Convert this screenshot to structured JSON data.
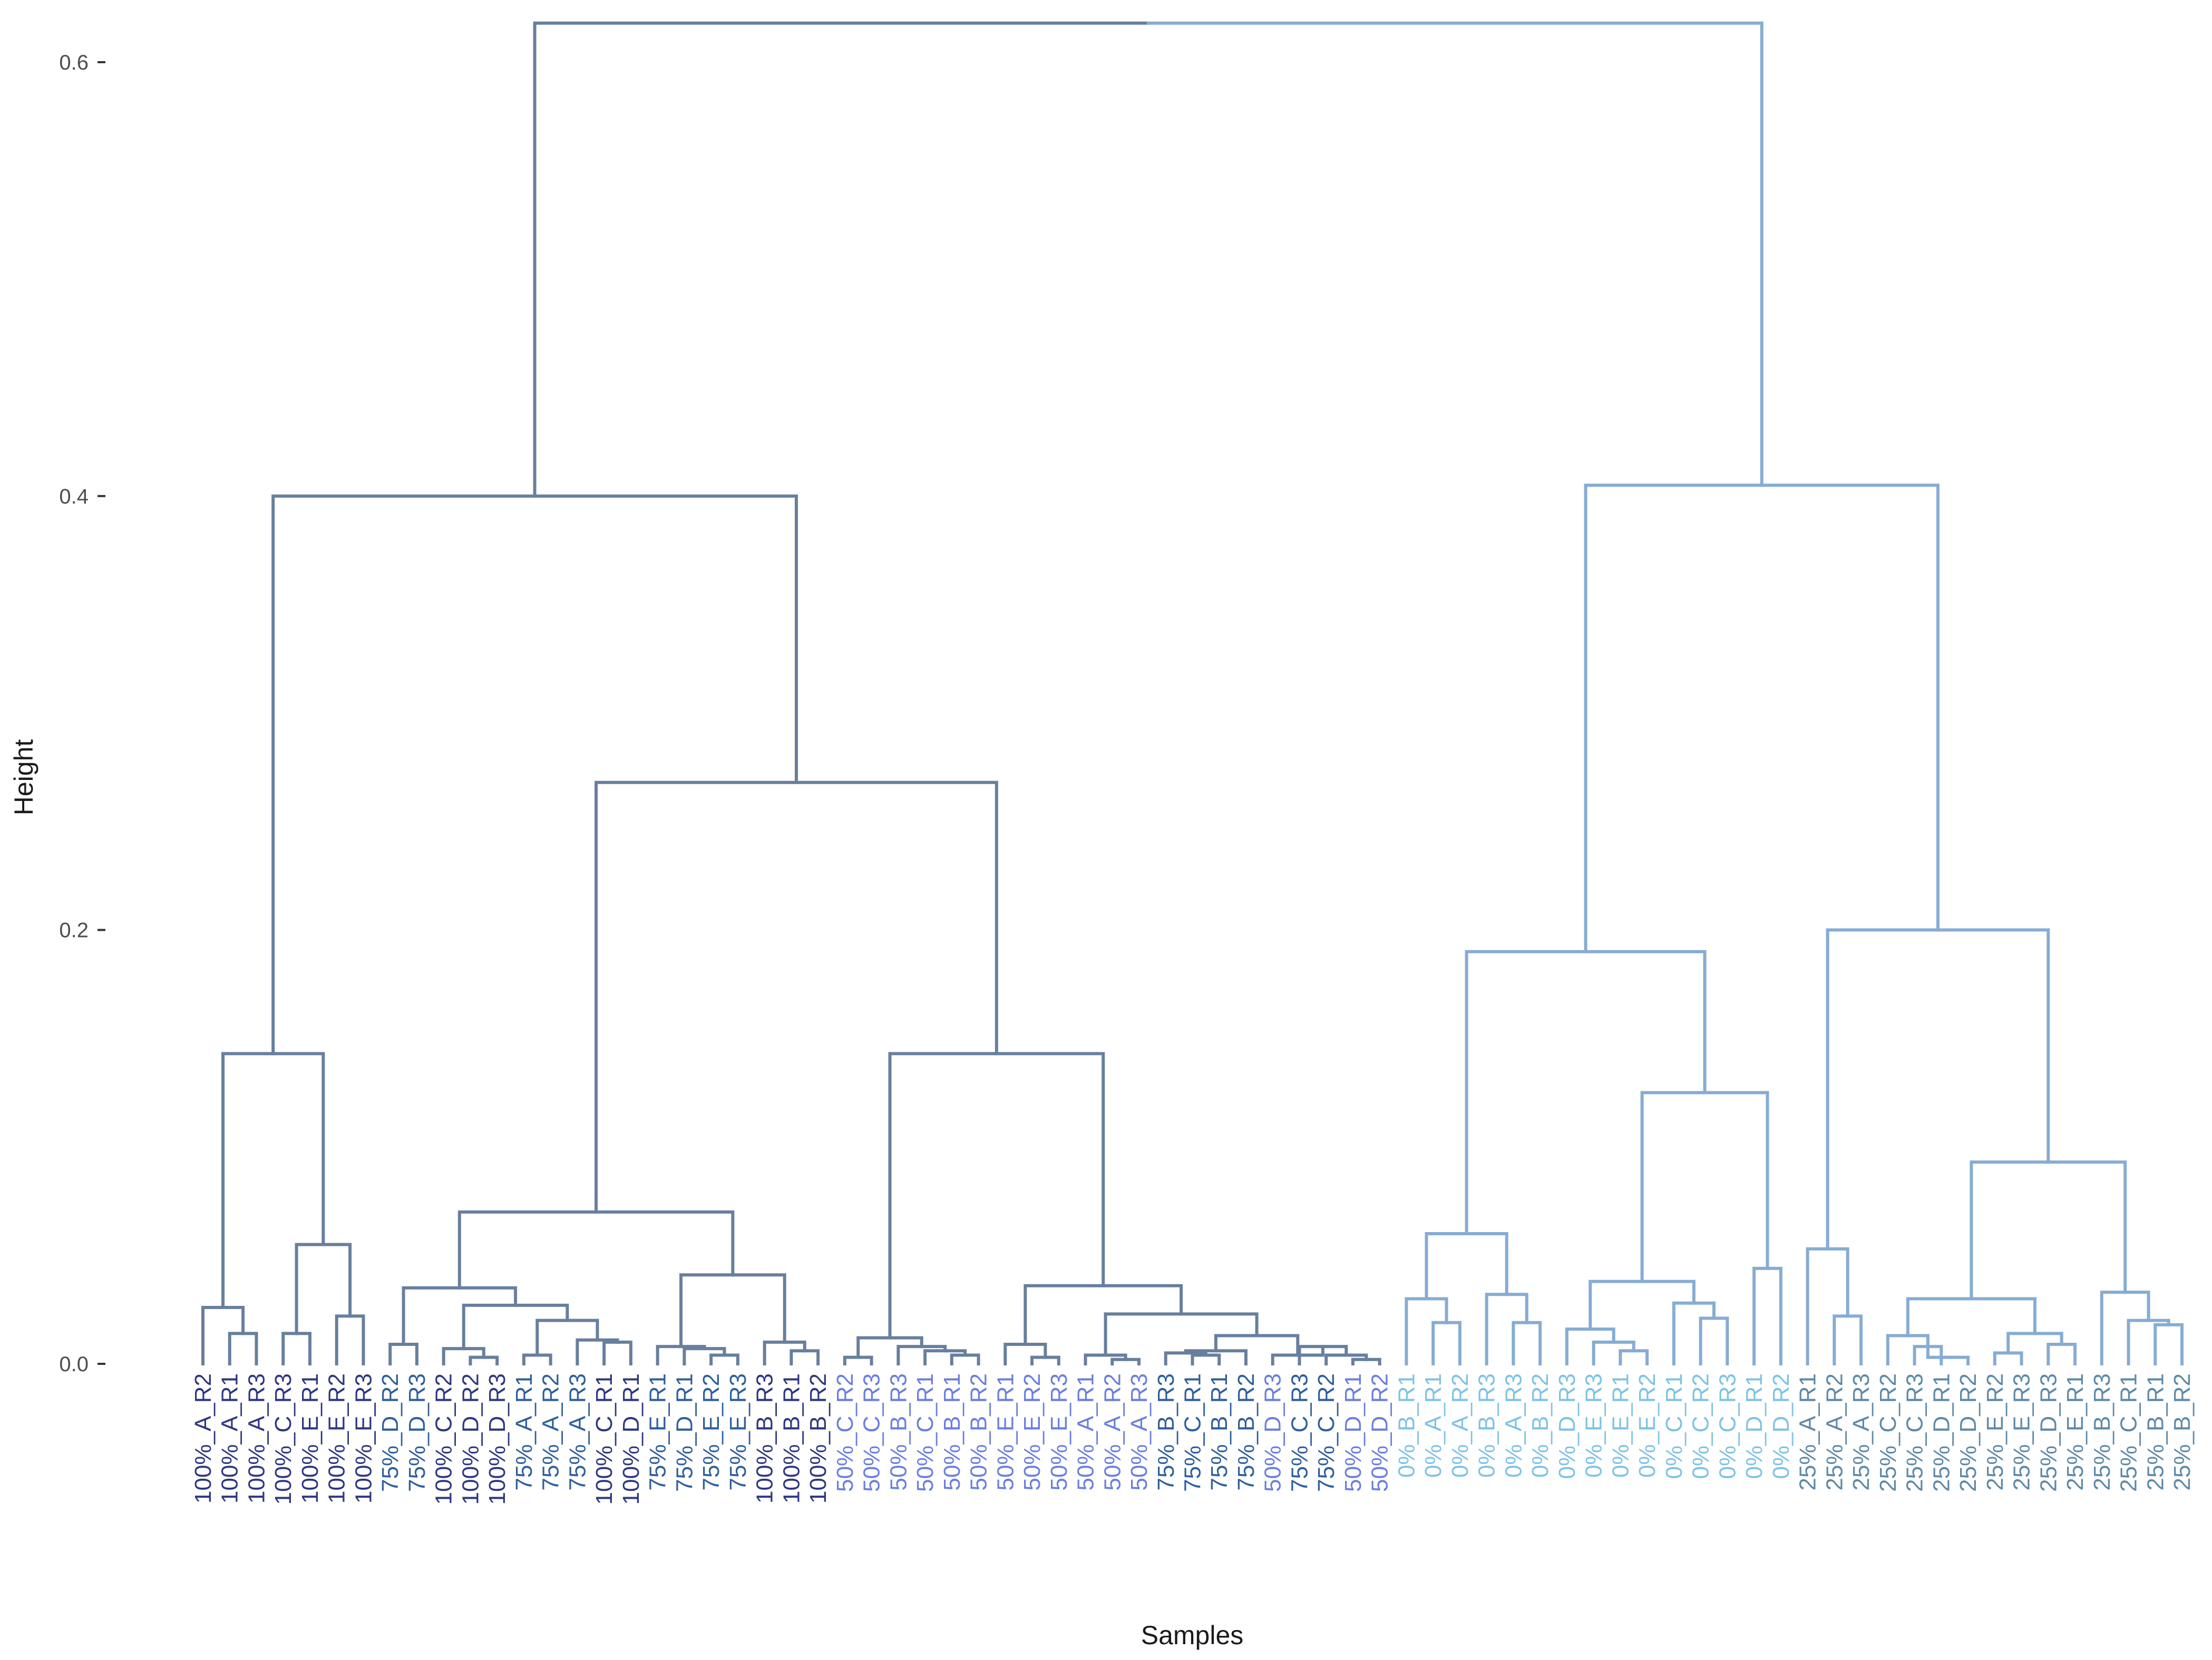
{
  "chart_data": {
    "type": "dendrogram",
    "title": "",
    "xlabel": "Samples",
    "ylabel": "Height",
    "ylim": [
      0,
      0.62
    ],
    "yticks": [
      0.0,
      0.2,
      0.4,
      0.6
    ],
    "ytick_labels": [
      "0.0",
      "0.2",
      "0.4",
      "0.6"
    ],
    "grid": false,
    "colors": {
      "left_branch": "#687f9e",
      "right_branch": "#86acd4",
      "labels_100": "#2e3780",
      "labels_75": "#2f5f9c",
      "labels_50": "#6a7ee0",
      "labels_0": "#7ec3e3",
      "labels_25": "#5e89a8"
    },
    "leaves": [
      "100%_A_R2",
      "100%_A_R1",
      "100%_A_R3",
      "100%_C_R3",
      "100%_E_R1",
      "100%_E_R2",
      "100%_E_R3",
      "75%_D_R2",
      "75%_D_R3",
      "100%_C_R2",
      "100%_D_R2",
      "100%_D_R3",
      "75%_A_R1",
      "75%_A_R2",
      "75%_A_R3",
      "100%_C_R1",
      "100%_D_R1",
      "75%_E_R1",
      "75%_D_R1",
      "75%_E_R2",
      "75%_E_R3",
      "100%_B_R3",
      "100%_B_R1",
      "100%_B_R2",
      "50%_C_R2",
      "50%_C_R3",
      "50%_B_R3",
      "50%_C_R1",
      "50%_B_R1",
      "50%_B_R2",
      "50%_E_R1",
      "50%_E_R2",
      "50%_E_R3",
      "50%_A_R1",
      "50%_A_R2",
      "50%_A_R3",
      "75%_B_R3",
      "75%_C_R1",
      "75%_B_R1",
      "75%_B_R2",
      "50%_D_R3",
      "75%_C_R3",
      "75%_C_R2",
      "50%_D_R1",
      "50%_D_R2",
      "0%_B_R1",
      "0%_A_R1",
      "0%_A_R2",
      "0%_B_R3",
      "0%_A_R3",
      "0%_B_R2",
      "0%_D_R3",
      "0%_E_R3",
      "0%_E_R1",
      "0%_E_R2",
      "0%_C_R1",
      "0%_C_R2",
      "0%_C_R3",
      "0%_D_R1",
      "0%_D_R2",
      "25%_A_R1",
      "25%_A_R2",
      "25%_A_R3",
      "25%_C_R2",
      "25%_C_R3",
      "25%_D_R1",
      "25%_D_R2",
      "25%_E_R2",
      "25%_E_R3",
      "25%_D_R3",
      "25%_E_R1",
      "25%_B_R3",
      "25%_C_R1",
      "25%_B_R1",
      "25%_B_R2"
    ],
    "merges": [
      {
        "id": "a1",
        "l": 1,
        "r": 2,
        "h": 0.014
      },
      {
        "id": "a2",
        "l": 0,
        "r": "a1",
        "h": 0.026
      },
      {
        "id": "a3",
        "l": 3,
        "r": 4,
        "h": 0.014
      },
      {
        "id": "a4",
        "l": 5,
        "r": 6,
        "h": 0.022
      },
      {
        "id": "a5",
        "l": "a3",
        "r": "a4",
        "h": 0.055
      },
      {
        "id": "a6",
        "l": "a2",
        "r": "a5",
        "h": 0.143
      },
      {
        "id": "b1",
        "l": 7,
        "r": 8,
        "h": 0.009
      },
      {
        "id": "b2",
        "l": 10,
        "r": 11,
        "h": 0.003
      },
      {
        "id": "b3",
        "l": 9,
        "r": "b2",
        "h": 0.007
      },
      {
        "id": "b4",
        "l": 12,
        "r": 13,
        "h": 0.004
      },
      {
        "id": "b5",
        "l": 15,
        "r": 16,
        "h": 0.01
      },
      {
        "id": "b6",
        "l": 14,
        "r": "b5",
        "h": 0.011
      },
      {
        "id": "b7",
        "l": "b4",
        "r": "b6",
        "h": 0.02
      },
      {
        "id": "b8",
        "l": "b3",
        "r": "b7",
        "h": 0.027
      },
      {
        "id": "b9",
        "l": "b1",
        "r": "b8",
        "h": 0.035
      },
      {
        "id": "b10",
        "l": 19,
        "r": 20,
        "h": 0.004
      },
      {
        "id": "b11",
        "l": 18,
        "r": "b10",
        "h": 0.007
      },
      {
        "id": "b12",
        "l": 17,
        "r": "b11",
        "h": 0.008
      },
      {
        "id": "b13",
        "l": 22,
        "r": 23,
        "h": 0.006
      },
      {
        "id": "b14",
        "l": 21,
        "r": "b13",
        "h": 0.01
      },
      {
        "id": "b15",
        "l": "b12",
        "r": "b14",
        "h": 0.041
      },
      {
        "id": "b16",
        "l": "b9",
        "r": "b15",
        "h": 0.07
      },
      {
        "id": "c1",
        "l": 24,
        "r": 25,
        "h": 0.003
      },
      {
        "id": "c2",
        "l": 28,
        "r": 29,
        "h": 0.004
      },
      {
        "id": "c3",
        "l": 27,
        "r": "c2",
        "h": 0.006
      },
      {
        "id": "c4",
        "l": 26,
        "r": "c3",
        "h": 0.008
      },
      {
        "id": "c5",
        "l": "c1",
        "r": "c4",
        "h": 0.012
      },
      {
        "id": "c6",
        "l": 31,
        "r": 32,
        "h": 0.003
      },
      {
        "id": "c7",
        "l": 30,
        "r": "c6",
        "h": 0.009
      },
      {
        "id": "c8",
        "l": 34,
        "r": 35,
        "h": 0.002
      },
      {
        "id": "c9",
        "l": 33,
        "r": "c8",
        "h": 0.004
      },
      {
        "id": "c10",
        "l": 37,
        "r": 38,
        "h": 0.004
      },
      {
        "id": "c11",
        "l": 36,
        "r": "c10",
        "h": 0.005
      },
      {
        "id": "c12",
        "l": "c11",
        "r": 39,
        "h": 0.006
      },
      {
        "id": "c13",
        "l": 43,
        "r": 44,
        "h": 0.002
      },
      {
        "id": "c14",
        "l": 42,
        "r": "c13",
        "h": 0.004
      },
      {
        "id": "c15",
        "l": 41,
        "r": "c14",
        "h": 0.008
      },
      {
        "id": "c16",
        "l": 40,
        "r": "c15",
        "h": 0.004
      },
      {
        "id": "c17",
        "l": "c12",
        "r": "c16",
        "h": 0.013
      },
      {
        "id": "c18",
        "l": "c9",
        "r": "c17",
        "h": 0.023
      },
      {
        "id": "c19",
        "l": "c7",
        "r": "c18",
        "h": 0.036
      },
      {
        "id": "c20",
        "l": "c5",
        "r": "c19",
        "h": 0.143
      },
      {
        "id": "c21",
        "l": "b16",
        "r": "c20",
        "h": 0.268
      },
      {
        "id": "c22",
        "l": "a6",
        "r": "c21",
        "h": 0.4
      },
      {
        "id": "d1",
        "l": 46,
        "r": 47,
        "h": 0.019
      },
      {
        "id": "d2",
        "l": 45,
        "r": "d1",
        "h": 0.03
      },
      {
        "id": "d3",
        "l": 49,
        "r": 50,
        "h": 0.019
      },
      {
        "id": "d4",
        "l": 48,
        "r": "d3",
        "h": 0.032
      },
      {
        "id": "d5",
        "l": "d2",
        "r": "d4",
        "h": 0.06
      },
      {
        "id": "d6",
        "l": 53,
        "r": 54,
        "h": 0.006
      },
      {
        "id": "d7",
        "l": 52,
        "r": "d6",
        "h": 0.01
      },
      {
        "id": "d8",
        "l": 51,
        "r": "d7",
        "h": 0.016
      },
      {
        "id": "d9",
        "l": 56,
        "r": 57,
        "h": 0.021
      },
      {
        "id": "d10",
        "l": 55,
        "r": "d9",
        "h": 0.028
      },
      {
        "id": "d11",
        "l": "d8",
        "r": "d10",
        "h": 0.038
      },
      {
        "id": "d12",
        "l": 58,
        "r": 59,
        "h": 0.044
      },
      {
        "id": "d13",
        "l": "d11",
        "r": "d12",
        "h": 0.125
      },
      {
        "id": "d14",
        "l": "d5",
        "r": "d13",
        "h": 0.19
      },
      {
        "id": "e1",
        "l": 61,
        "r": 62,
        "h": 0.022
      },
      {
        "id": "e2",
        "l": 60,
        "r": "e1",
        "h": 0.053
      },
      {
        "id": "e3",
        "l": 64,
        "r": 65,
        "h": 0.008
      },
      {
        "id": "e4",
        "l": "e3",
        "r": 66,
        "h": 0.003
      },
      {
        "id": "e5",
        "l": 63,
        "r": "e3",
        "h": 0.013
      },
      {
        "id": "e6",
        "l": 67,
        "r": 68,
        "h": 0.005
      },
      {
        "id": "e7",
        "l": 69,
        "r": 70,
        "h": 0.009
      },
      {
        "id": "e8",
        "l": "e6",
        "r": "e7",
        "h": 0.014
      },
      {
        "id": "e9",
        "l": "e5",
        "r": "e8",
        "h": 0.03
      },
      {
        "id": "e10",
        "l": 73,
        "r": 74,
        "h": 0.018
      },
      {
        "id": "e11",
        "l": 72,
        "r": "e10",
        "h": 0.02
      },
      {
        "id": "e12",
        "l": 71,
        "r": "e11",
        "h": 0.033
      },
      {
        "id": "e13",
        "l": "e9",
        "r": "e12",
        "h": 0.093
      },
      {
        "id": "e14",
        "l": "e2",
        "r": "e13",
        "h": 0.2
      },
      {
        "id": "e15",
        "l": "d14",
        "r": "e14",
        "h": 0.405
      },
      {
        "id": "root",
        "l": "c22",
        "r": "e15",
        "h": 0.618
      }
    ]
  }
}
